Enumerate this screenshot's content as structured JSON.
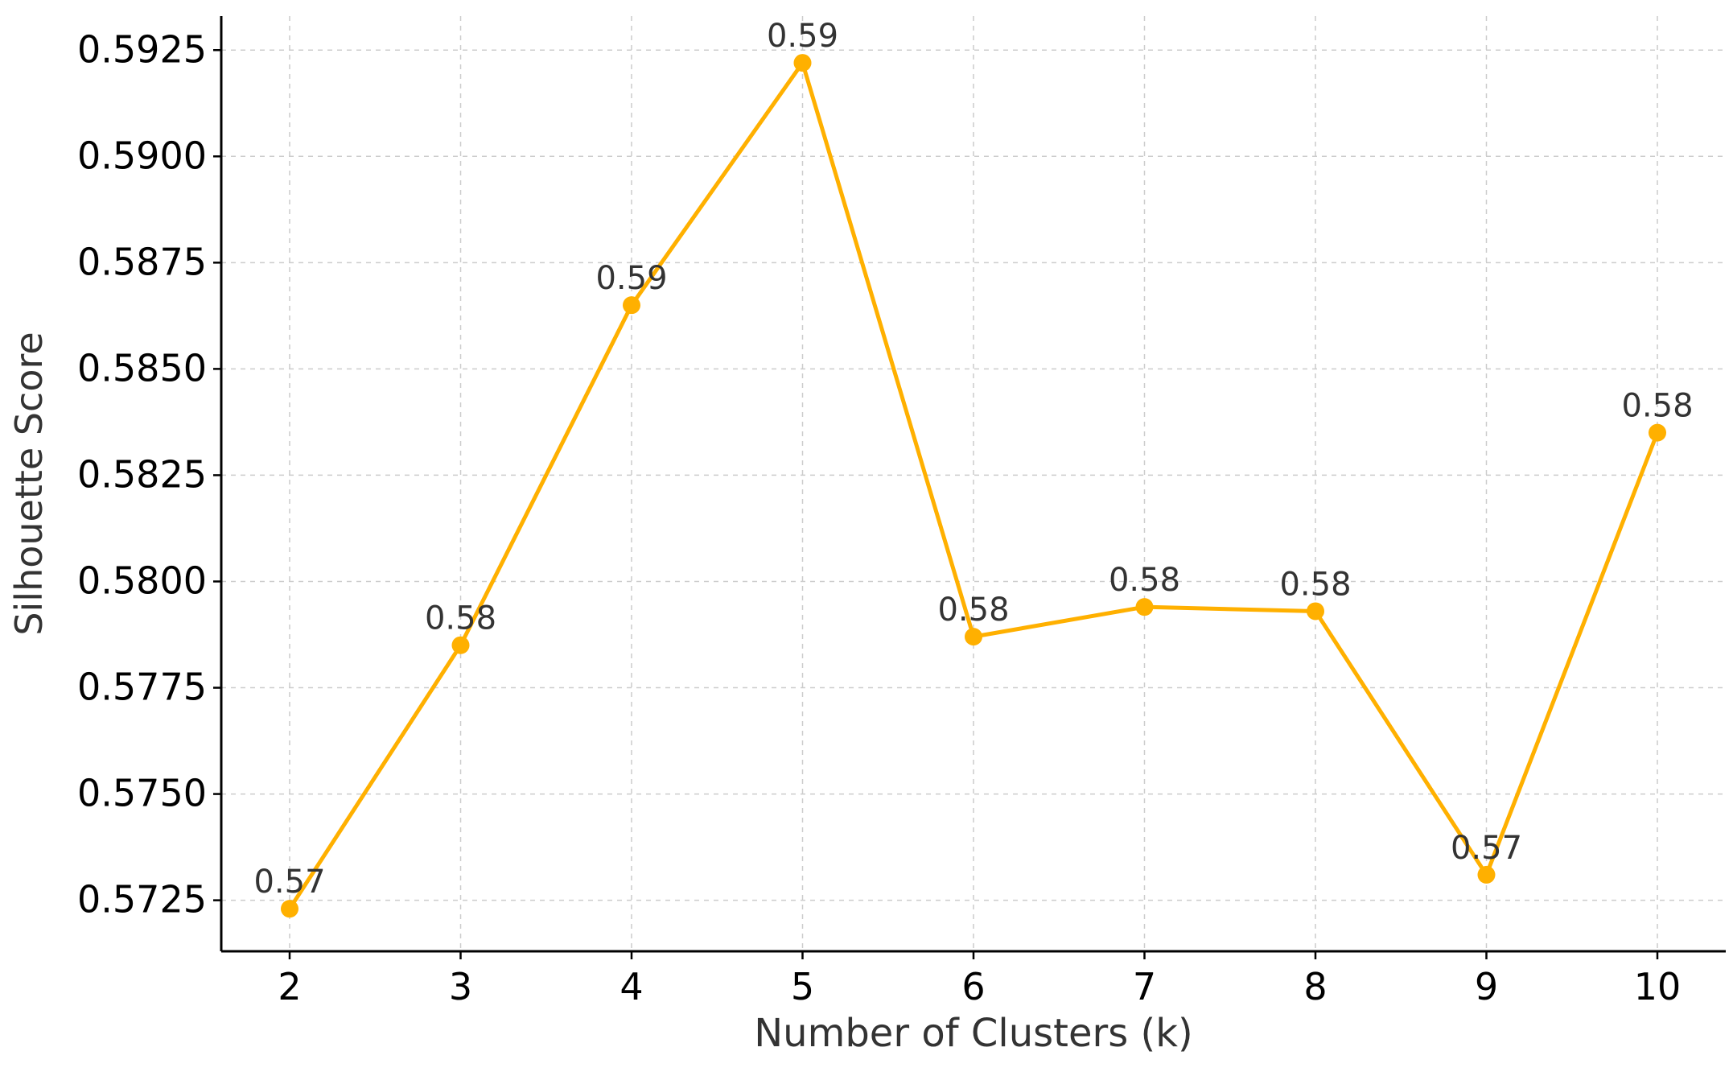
{
  "chart_data": {
    "type": "line",
    "title": "",
    "xlabel": "Number of Clusters (k)",
    "ylabel": "Silhouette Score",
    "x": [
      2,
      3,
      4,
      5,
      6,
      7,
      8,
      9,
      10
    ],
    "series": [
      {
        "values": [
          0.5723,
          0.5785,
          0.5865,
          0.5922,
          0.5787,
          0.5794,
          0.5793,
          0.5731,
          0.5835
        ],
        "data_labels": [
          "0.57",
          "0.58",
          "0.59",
          "0.59",
          "0.58",
          "0.58",
          "0.58",
          "0.57",
          "0.58"
        ]
      }
    ],
    "x_ticks": [
      2,
      3,
      4,
      5,
      6,
      7,
      8,
      9,
      10
    ],
    "x_tick_labels": [
      "2",
      "3",
      "4",
      "5",
      "6",
      "7",
      "8",
      "9",
      "10"
    ],
    "y_ticks": [
      0.5725,
      0.575,
      0.5775,
      0.58,
      0.5825,
      0.585,
      0.5875,
      0.59,
      0.5925
    ],
    "y_tick_labels": [
      "0.5725",
      "0.5750",
      "0.5775",
      "0.5800",
      "0.5825",
      "0.5850",
      "0.5875",
      "0.5900",
      "0.5925"
    ],
    "xlim": [
      1.6,
      10.4
    ],
    "ylim": [
      0.5713,
      0.5933
    ],
    "grid": true,
    "legend": "none",
    "colors": {
      "line": "#FFB000",
      "grid": "#CCCCCC",
      "axis": "#000000",
      "label_text": "#333333",
      "tick_text": "#000000"
    }
  }
}
